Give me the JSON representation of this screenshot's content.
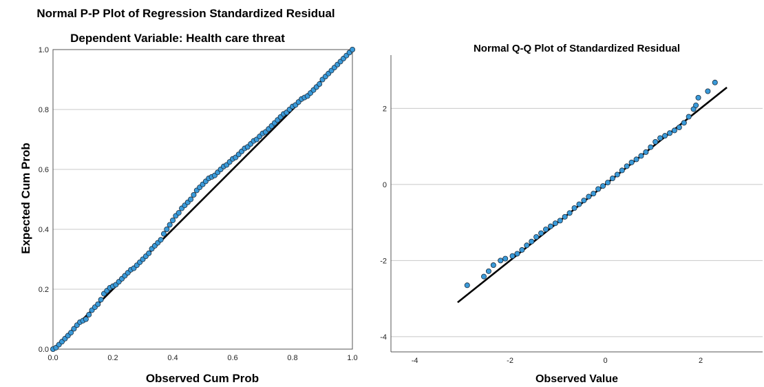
{
  "chart_data": [
    {
      "type": "scatter",
      "title": "Normal P-P Plot of Regression Standardized Residual",
      "subtitle": "Dependent Variable: Health care threat",
      "xlabel": "Observed Cum Prob",
      "ylabel": "Expected Cum Prob",
      "xlim": [
        0,
        1
      ],
      "ylim": [
        0,
        1
      ],
      "xticks": [
        "0.0",
        "0.2",
        "0.4",
        "0.6",
        "0.8",
        "1.0"
      ],
      "yticks": [
        "0.0",
        "0.2",
        "0.4",
        "0.6",
        "0.8",
        "1.0"
      ],
      "grid": "horizontal",
      "reference_line": [
        [
          0,
          0
        ],
        [
          1,
          1
        ]
      ],
      "marker_color": "#3a9ad9",
      "series": [
        {
          "x": [
            0.0,
            0.01,
            0.02,
            0.03,
            0.04,
            0.05,
            0.06,
            0.07,
            0.08,
            0.09,
            0.1,
            0.11,
            0.12,
            0.13,
            0.14,
            0.15,
            0.16,
            0.17,
            0.18,
            0.19,
            0.2,
            0.21,
            0.22,
            0.23,
            0.24,
            0.25,
            0.26,
            0.27,
            0.28,
            0.29,
            0.3,
            0.31,
            0.32,
            0.33,
            0.34,
            0.35,
            0.36,
            0.37,
            0.38,
            0.39,
            0.4,
            0.41,
            0.42,
            0.43,
            0.44,
            0.45,
            0.46,
            0.47,
            0.48,
            0.49,
            0.5,
            0.51,
            0.52,
            0.53,
            0.54,
            0.55,
            0.56,
            0.57,
            0.58,
            0.59,
            0.6,
            0.61,
            0.62,
            0.63,
            0.64,
            0.65,
            0.66,
            0.67,
            0.68,
            0.69,
            0.7,
            0.71,
            0.72,
            0.73,
            0.74,
            0.75,
            0.76,
            0.77,
            0.78,
            0.79,
            0.8,
            0.81,
            0.82,
            0.83,
            0.84,
            0.85,
            0.86,
            0.87,
            0.88,
            0.89,
            0.9,
            0.91,
            0.92,
            0.93,
            0.94,
            0.95,
            0.96,
            0.97,
            0.98,
            0.99,
            1.0
          ],
          "y": [
            0.0,
            0.005,
            0.015,
            0.025,
            0.035,
            0.045,
            0.055,
            0.068,
            0.08,
            0.09,
            0.095,
            0.1,
            0.115,
            0.13,
            0.14,
            0.15,
            0.165,
            0.185,
            0.195,
            0.205,
            0.21,
            0.215,
            0.225,
            0.235,
            0.245,
            0.255,
            0.265,
            0.27,
            0.28,
            0.29,
            0.3,
            0.31,
            0.32,
            0.335,
            0.345,
            0.355,
            0.365,
            0.385,
            0.4,
            0.415,
            0.43,
            0.445,
            0.455,
            0.47,
            0.48,
            0.49,
            0.5,
            0.515,
            0.53,
            0.54,
            0.55,
            0.56,
            0.57,
            0.575,
            0.58,
            0.59,
            0.6,
            0.61,
            0.615,
            0.625,
            0.635,
            0.64,
            0.65,
            0.66,
            0.67,
            0.675,
            0.685,
            0.695,
            0.7,
            0.71,
            0.72,
            0.725,
            0.735,
            0.745,
            0.755,
            0.765,
            0.775,
            0.785,
            0.79,
            0.8,
            0.81,
            0.815,
            0.825,
            0.835,
            0.84,
            0.845,
            0.855,
            0.865,
            0.875,
            0.885,
            0.9,
            0.91,
            0.92,
            0.93,
            0.94,
            0.95,
            0.96,
            0.97,
            0.98,
            0.99,
            1.0
          ]
        }
      ]
    },
    {
      "type": "scatter",
      "title": "Normal Q-Q Plot of Standardized Residual",
      "xlabel": "Observed Value",
      "ylabel": "",
      "xlim": [
        -4.5,
        3.3
      ],
      "ylim": [
        -4.4,
        3.4
      ],
      "xticks": [
        "-4",
        "-2",
        "0",
        "2"
      ],
      "yticks": [
        "-4",
        "-2",
        "0",
        "2"
      ],
      "grid": "horizontal",
      "reference_line": [
        [
          -3.1,
          -3.1
        ],
        [
          2.55,
          2.55
        ]
      ],
      "marker_color": "#3a9ad9",
      "series": [
        {
          "x": [
            -2.9,
            -2.55,
            -2.45,
            -2.35,
            -2.2,
            -2.1,
            -1.95,
            -1.85,
            -1.75,
            -1.65,
            -1.55,
            -1.45,
            -1.35,
            -1.25,
            -1.15,
            -1.05,
            -0.95,
            -0.85,
            -0.75,
            -0.65,
            -0.55,
            -0.45,
            -0.35,
            -0.25,
            -0.15,
            -0.05,
            0.05,
            0.15,
            0.25,
            0.35,
            0.45,
            0.55,
            0.65,
            0.75,
            0.85,
            0.95,
            1.05,
            1.15,
            1.25,
            1.35,
            1.45,
            1.55,
            1.65,
            1.75,
            1.85,
            1.9,
            1.95,
            2.15,
            2.3
          ],
          "y": [
            -2.65,
            -2.42,
            -2.28,
            -2.12,
            -2.0,
            -1.95,
            -1.88,
            -1.82,
            -1.72,
            -1.6,
            -1.5,
            -1.38,
            -1.28,
            -1.18,
            -1.1,
            -1.02,
            -0.95,
            -0.85,
            -0.75,
            -0.62,
            -0.52,
            -0.42,
            -0.32,
            -0.24,
            -0.12,
            -0.04,
            0.05,
            0.16,
            0.26,
            0.37,
            0.48,
            0.58,
            0.66,
            0.75,
            0.85,
            0.98,
            1.12,
            1.22,
            1.28,
            1.35,
            1.42,
            1.5,
            1.62,
            1.78,
            1.98,
            2.08,
            2.28,
            2.45,
            2.68
          ]
        }
      ]
    }
  ]
}
